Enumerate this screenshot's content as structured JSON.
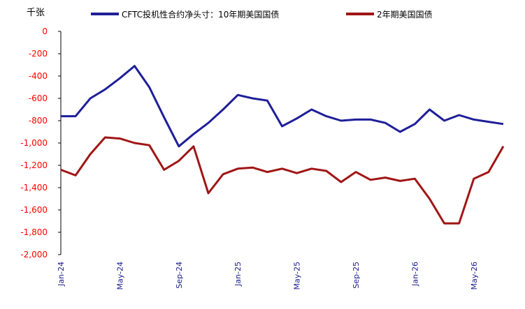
{
  "chart_data": {
    "type": "line",
    "unit_label": "千张",
    "x": [
      "2024-01",
      "2024-02",
      "2024-03",
      "2024-04",
      "2024-05",
      "2024-06",
      "2024-07",
      "2024-08",
      "2024-09",
      "2024-10",
      "2024-11",
      "2024-12",
      "2025-01",
      "2025-02",
      "2025-03",
      "2025-04",
      "2025-05",
      "2025-06",
      "2025-07",
      "2025-08",
      "2025-09",
      "2025-10",
      "2025-11",
      "2025-12",
      "2026-01",
      "2026-02",
      "2026-03",
      "2026-04",
      "2026-05",
      "2026-06",
      "2026-07"
    ],
    "x_tick_labels": [
      "Jan-24",
      "May-24",
      "Sep-24",
      "Jan-25",
      "May-25",
      "Sep-25",
      "Jan-26",
      "May-26"
    ],
    "ylim": [
      -2000,
      0
    ],
    "y_ticks": [
      0,
      -200,
      -400,
      -600,
      -800,
      -1000,
      -1200,
      -1400,
      -1600,
      -1800,
      -2000
    ],
    "y_tick_labels": [
      "0",
      "-200",
      "-400",
      "-600",
      "-800",
      "-1,000",
      "-1,200",
      "-1,400",
      "-1,600",
      "-1,800",
      "-2,000"
    ],
    "grid": false,
    "legend_position": "top",
    "series": [
      {
        "name": "CFTC投机性合约净头寸：10年期美国国债",
        "color": "#1f1f99",
        "values": [
          -760,
          -760,
          -600,
          -520,
          -420,
          -310,
          -500,
          -770,
          -1030,
          -920,
          -820,
          -700,
          -570,
          -600,
          -620,
          -850,
          -780,
          -700,
          -760,
          -800,
          -790,
          -790,
          -820,
          -900,
          -830,
          -700,
          -800,
          -750,
          -790,
          -810,
          -830
        ]
      },
      {
        "name": "2年期美国国债",
        "color": "#a01515",
        "values": [
          -1240,
          -1290,
          -1100,
          -950,
          -960,
          -1000,
          -1020,
          -1240,
          -1160,
          -1030,
          -1450,
          -1280,
          -1230,
          -1220,
          -1260,
          -1230,
          -1270,
          -1230,
          -1250,
          -1350,
          -1260,
          -1330,
          -1310,
          -1340,
          -1320,
          -1500,
          -1720,
          -1720,
          -1320,
          -1260,
          -1030
        ]
      }
    ]
  }
}
